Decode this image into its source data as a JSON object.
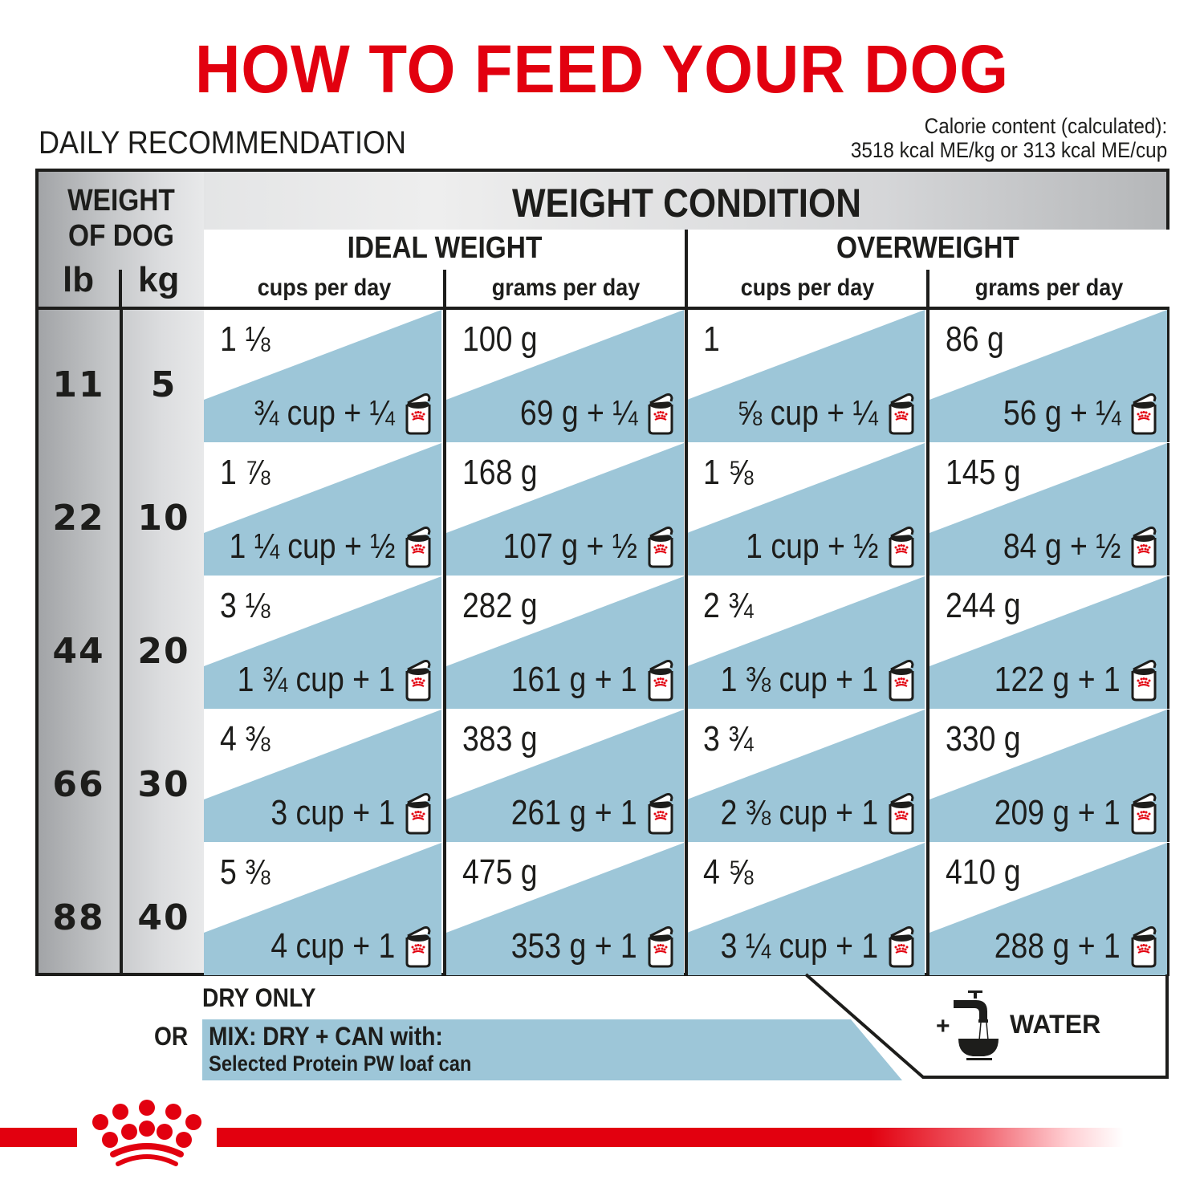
{
  "header": {
    "title": "HOW TO FEED YOUR DOG",
    "section_label": "DAILY RECOMMENDATION",
    "calorie_line1": "Calorie content (calculated):",
    "calorie_line2": "3518 kcal ME/kg or 313 kcal ME/cup"
  },
  "table": {
    "weight_header_line1": "WEIGHT",
    "weight_header_line2": "OF DOG",
    "unit_lb": "lb",
    "unit_kg": "kg",
    "condition_header": "WEIGHT CONDITION",
    "groups": [
      {
        "label": "IDEAL WEIGHT",
        "columns": [
          "cups per day",
          "grams per day"
        ]
      },
      {
        "label": "OVERWEIGHT",
        "columns": [
          "cups per day",
          "grams per day"
        ]
      }
    ],
    "rows": [
      {
        "lb": "11",
        "kg": "5",
        "cells": [
          {
            "dry": "1 ⅛",
            "mix": "¾ cup + ¼"
          },
          {
            "dry": "100 g",
            "mix": "69 g + ¼"
          },
          {
            "dry": "1",
            "mix": "⅝ cup + ¼"
          },
          {
            "dry": "86 g",
            "mix": "56 g + ¼"
          }
        ]
      },
      {
        "lb": "22",
        "kg": "10",
        "cells": [
          {
            "dry": "1 ⅞",
            "mix": "1 ¼ cup + ½"
          },
          {
            "dry": "168 g",
            "mix": "107 g + ½"
          },
          {
            "dry": "1 ⅝",
            "mix": "1 cup + ½"
          },
          {
            "dry": "145 g",
            "mix": "84 g + ½"
          }
        ]
      },
      {
        "lb": "44",
        "kg": "20",
        "cells": [
          {
            "dry": "3 ⅛",
            "mix": "1 ¾ cup + 1"
          },
          {
            "dry": "282 g",
            "mix": "161 g + 1"
          },
          {
            "dry": "2 ¾",
            "mix": "1 ⅜ cup + 1"
          },
          {
            "dry": "244 g",
            "mix": "122 g + 1"
          }
        ]
      },
      {
        "lb": "66",
        "kg": "30",
        "cells": [
          {
            "dry": "4 ⅜",
            "mix": "3 cup + 1"
          },
          {
            "dry": "383 g",
            "mix": "261 g + 1"
          },
          {
            "dry": "3 ¾",
            "mix": "2 ⅜ cup + 1"
          },
          {
            "dry": "330 g",
            "mix": "209 g + 1"
          }
        ]
      },
      {
        "lb": "88",
        "kg": "40",
        "cells": [
          {
            "dry": "5 ⅜",
            "mix": "4 cup + 1"
          },
          {
            "dry": "475 g",
            "mix": "353 g + 1"
          },
          {
            "dry": "4 ⅝",
            "mix": "3 ¼ cup + 1"
          },
          {
            "dry": "410 g",
            "mix": "288 g + 1"
          }
        ]
      }
    ]
  },
  "legend": {
    "dry_only": "DRY ONLY",
    "or": "OR",
    "mix_title": "MIX: DRY + CAN with:",
    "mix_product": "Selected Protein PW loaf can",
    "water_plus": "+",
    "water_label": "WATER"
  },
  "icons": {
    "can": "wet-food-can-icon",
    "tap": "water-tap-icon",
    "logo": "royal-crown-logo"
  },
  "colors": {
    "brand_red": "#e2000f",
    "mix_blue": "#9dc6d8",
    "text_dark": "#1d1d1b"
  }
}
